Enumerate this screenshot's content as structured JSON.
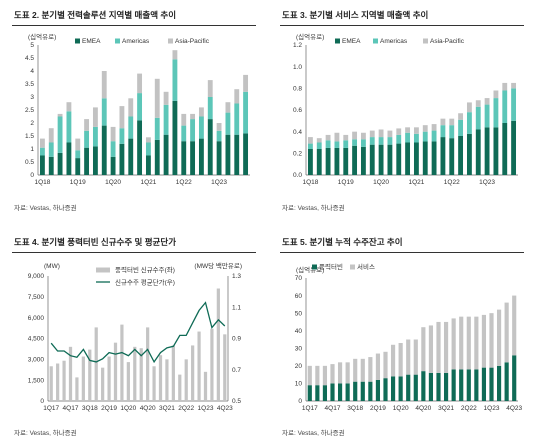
{
  "colors": {
    "emea": "#0f6b56",
    "americas": "#5cc6b8",
    "asia_pacific": "#c2c2c2",
    "line": "#0f6b56",
    "bar_gray": "#c4c4c4",
    "axis": "#666666",
    "title_rule": "#333333"
  },
  "fig1": {
    "title": "도표 2. 분기별 전력솔루션 지역별 매출액 추이",
    "source": "자료: Vestas, 하나증권"
  },
  "fig2": {
    "title": "도표 3. 분기별 서비스 지역별 매출액 추이",
    "source": "자료: Vestas, 하나증권"
  },
  "fig3": {
    "title": "도표 4. 분기별 풍력터빈 신규수주 및 평균단가",
    "source": "자료: Vestas, 하나증권"
  },
  "fig4": {
    "title": "도표 5. 분기별 누적 수주잔고 추이",
    "source": "자료: Vestas, 하나증권"
  },
  "chart_data": [
    {
      "type": "bar",
      "stacked": true,
      "ylabel": "(십억유로)",
      "ylim": [
        0,
        5
      ],
      "yticks": [
        "0",
        "0.5",
        "1",
        "1.5",
        "2",
        "2.5",
        "3",
        "3.5",
        "4",
        "4.5",
        "5"
      ],
      "xtick_labels": [
        "1Q18",
        "1Q19",
        "1Q20",
        "1Q21",
        "1Q22",
        "1Q23"
      ],
      "categories": [
        "1Q18",
        "2Q18",
        "3Q18",
        "4Q18",
        "1Q19",
        "2Q19",
        "3Q19",
        "4Q19",
        "1Q20",
        "2Q20",
        "3Q20",
        "4Q20",
        "1Q21",
        "2Q21",
        "3Q21",
        "4Q21",
        "1Q22",
        "2Q22",
        "3Q22",
        "4Q22",
        "1Q23",
        "2Q23",
        "3Q23",
        "4Q23"
      ],
      "legend": "top",
      "series": [
        {
          "name": "EMEA",
          "values": [
            0.75,
            0.7,
            0.85,
            1.25,
            0.65,
            1.05,
            1.1,
            1.9,
            0.7,
            1.2,
            1.4,
            2.1,
            0.75,
            1.35,
            1.55,
            2.85,
            1.3,
            1.3,
            1.4,
            2.15,
            1.3,
            1.55,
            1.55,
            1.6
          ]
        },
        {
          "name": "Americas",
          "values": [
            0.3,
            0.55,
            1.4,
            1.2,
            0.3,
            0.65,
            0.75,
            1.05,
            0.6,
            0.6,
            0.85,
            1.05,
            0.5,
            0.85,
            1.15,
            1.6,
            0.6,
            0.85,
            0.85,
            0.85,
            0.4,
            0.85,
            1.2,
            1.6
          ]
        },
        {
          "name": "Asia-Pacific",
          "values": [
            0.35,
            0.55,
            0.1,
            0.35,
            0.45,
            0.45,
            0.75,
            1.05,
            0.55,
            0.85,
            0.7,
            0.75,
            0.2,
            1.5,
            0.5,
            0.35,
            0.45,
            0.2,
            0.35,
            0.65,
            0.3,
            0.4,
            0.55,
            0.65
          ]
        }
      ]
    },
    {
      "type": "bar",
      "stacked": true,
      "ylabel": "(십억유로)",
      "ylim": [
        0,
        1.2
      ],
      "yticks": [
        "0.0",
        "0.2",
        "0.4",
        "0.6",
        "0.8",
        "1.0",
        "1.2"
      ],
      "xtick_labels": [
        "1Q18",
        "1Q19",
        "1Q20",
        "1Q21",
        "1Q22",
        "1Q23"
      ],
      "categories": [
        "1Q18",
        "2Q18",
        "3Q18",
        "4Q18",
        "1Q19",
        "2Q19",
        "3Q19",
        "4Q19",
        "1Q20",
        "2Q20",
        "3Q20",
        "4Q20",
        "1Q21",
        "2Q21",
        "3Q21",
        "4Q21",
        "1Q22",
        "2Q22",
        "3Q22",
        "4Q22",
        "1Q23",
        "2Q23",
        "3Q23",
        "4Q23"
      ],
      "legend": "top",
      "series": [
        {
          "name": "EMEA",
          "values": [
            0.24,
            0.24,
            0.25,
            0.25,
            0.25,
            0.27,
            0.26,
            0.28,
            0.28,
            0.28,
            0.29,
            0.3,
            0.3,
            0.31,
            0.31,
            0.35,
            0.34,
            0.36,
            0.38,
            0.42,
            0.44,
            0.44,
            0.48,
            0.5
          ]
        },
        {
          "name": "Americas",
          "values": [
            0.05,
            0.06,
            0.07,
            0.06,
            0.07,
            0.06,
            0.07,
            0.07,
            0.07,
            0.07,
            0.08,
            0.09,
            0.08,
            0.09,
            0.1,
            0.11,
            0.12,
            0.15,
            0.2,
            0.21,
            0.21,
            0.27,
            0.3,
            0.3
          ]
        },
        {
          "name": "Asia-Pacific",
          "values": [
            0.06,
            0.04,
            0.05,
            0.08,
            0.05,
            0.07,
            0.06,
            0.06,
            0.07,
            0.06,
            0.06,
            0.05,
            0.06,
            0.06,
            0.06,
            0.06,
            0.06,
            0.06,
            0.09,
            0.06,
            0.06,
            0.07,
            0.07,
            0.05
          ]
        }
      ]
    },
    {
      "type": "bar",
      "ylabel": "(MW)",
      "y2label": "(MW당 백만유로)",
      "ylim": [
        0,
        9000
      ],
      "y2lim": [
        0.5,
        1.3
      ],
      "yticks": [
        "0",
        "1,500",
        "3,000",
        "4,500",
        "6,000",
        "7,500",
        "9,000"
      ],
      "y2ticks": [
        "0.5",
        "0.7",
        "0.9",
        "1.1",
        "1.3"
      ],
      "xtick_labels": [
        "1Q17",
        "4Q17",
        "3Q18",
        "2Q19",
        "1Q20",
        "4Q20",
        "3Q21",
        "2Q22",
        "1Q23",
        "4Q23"
      ],
      "categories": [
        "1Q17",
        "2Q17",
        "3Q17",
        "4Q17",
        "1Q18",
        "2Q18",
        "3Q18",
        "4Q18",
        "1Q19",
        "2Q19",
        "3Q19",
        "4Q19",
        "1Q20",
        "2Q20",
        "3Q20",
        "4Q20",
        "1Q21",
        "2Q21",
        "3Q21",
        "4Q21",
        "1Q22",
        "2Q22",
        "3Q22",
        "4Q22",
        "1Q23",
        "2Q23",
        "3Q23",
        "4Q23"
      ],
      "legend": "top",
      "series": [
        {
          "name": "풍력터빈 신규수주(좌)",
          "axis": "left",
          "values": [
            2500,
            2700,
            2900,
            3900,
            1700,
            3200,
            3700,
            5300,
            2400,
            3200,
            4200,
            5500,
            2800,
            3900,
            3800,
            5300,
            2500,
            3300,
            3000,
            4000,
            1900,
            3000,
            4000,
            5000,
            2100,
            5200,
            8100,
            4800
          ]
        },
        {
          "name": "신규수주 평균단가(우)",
          "axis": "right",
          "type": "line",
          "values": [
            0.87,
            0.82,
            0.82,
            0.79,
            0.78,
            0.83,
            0.76,
            0.75,
            0.77,
            0.81,
            0.8,
            0.81,
            0.79,
            0.83,
            0.79,
            0.83,
            0.75,
            0.81,
            0.84,
            0.85,
            0.92,
            0.92,
            1.0,
            1.08,
            1.13,
            0.97,
            1.02,
            0.98
          ]
        }
      ]
    },
    {
      "type": "bar",
      "stacked": true,
      "ylabel": "(십억유로)",
      "ylim": [
        0,
        70
      ],
      "yticks": [
        "0",
        "10",
        "20",
        "30",
        "40",
        "50",
        "60",
        "70"
      ],
      "xtick_labels": [
        "1Q17",
        "4Q17",
        "3Q18",
        "2Q19",
        "1Q20",
        "4Q20",
        "3Q21",
        "2Q22",
        "1Q23",
        "4Q23"
      ],
      "categories": [
        "1Q17",
        "2Q17",
        "3Q17",
        "4Q17",
        "1Q18",
        "2Q18",
        "3Q18",
        "4Q18",
        "1Q19",
        "2Q19",
        "3Q19",
        "4Q19",
        "1Q20",
        "2Q20",
        "3Q20",
        "4Q20",
        "1Q21",
        "2Q21",
        "3Q21",
        "4Q21",
        "1Q22",
        "2Q22",
        "3Q22",
        "4Q22",
        "1Q23",
        "2Q23",
        "3Q23",
        "4Q23"
      ],
      "legend": "top",
      "series": [
        {
          "name": "풍력터빈",
          "values": [
            9,
            9,
            9,
            10,
            10,
            10,
            11,
            11,
            11,
            12,
            13,
            14,
            14,
            15,
            15,
            17,
            16,
            16,
            16,
            18,
            18,
            18,
            18,
            19,
            19,
            20,
            22,
            26
          ]
        },
        {
          "name": "서비스",
          "values": [
            11,
            11,
            11,
            11,
            12,
            12,
            13,
            13,
            14,
            15,
            15,
            18,
            19,
            20,
            20,
            25,
            27,
            29,
            29,
            29,
            30,
            30,
            30,
            30,
            31,
            32,
            34,
            34
          ]
        }
      ]
    }
  ]
}
